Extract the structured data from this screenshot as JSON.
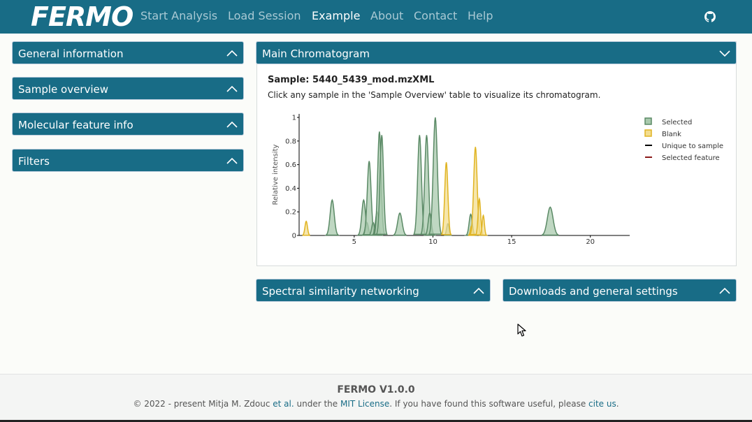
{
  "app": {
    "logo": "FERMO"
  },
  "nav": {
    "items": [
      {
        "label": "Start Analysis",
        "active": false
      },
      {
        "label": "Load Session",
        "active": false
      },
      {
        "label": "Example",
        "active": true
      },
      {
        "label": "About",
        "active": false
      },
      {
        "label": "Contact",
        "active": false
      },
      {
        "label": "Help",
        "active": false
      }
    ],
    "github_icon": "github-icon"
  },
  "sidebar": {
    "panels": [
      {
        "label": "General information"
      },
      {
        "label": "Sample overview"
      },
      {
        "label": "Molecular feature info"
      },
      {
        "label": "Filters"
      }
    ]
  },
  "main": {
    "chromatogram_header": "Main Chromatogram",
    "sample_title": "Sample: 5440_5439_mod.mzXML",
    "hint": "Click any sample in the 'Sample Overview' table to visualize its chromatogram."
  },
  "bottom_panels": {
    "left": "Spectral similarity networking",
    "right": "Downloads and general settings"
  },
  "chart_data": {
    "type": "area",
    "ylabel": "Relative intensity",
    "xlabel": "",
    "xlim": [
      1.5,
      22.5
    ],
    "ylim": [
      0,
      1.03
    ],
    "xticks": [
      5,
      10,
      15,
      20
    ],
    "yticks": [
      0,
      0.2,
      0.4,
      0.6,
      0.8,
      1
    ],
    "ytick_labels": [
      "0",
      "0.2",
      "0.4",
      "0.6",
      "0.8",
      "1"
    ],
    "legend_position": "top-right",
    "legend": [
      {
        "name": "Selected",
        "color": "#5b8a66",
        "fill": "#a9c9ad",
        "kind": "box"
      },
      {
        "name": "Blank",
        "color": "#e0b423",
        "fill": "#f3dd8f",
        "kind": "box"
      },
      {
        "name": "Unique to sample",
        "color": "#000000",
        "kind": "line"
      },
      {
        "name": "Selected feature",
        "color": "#8b1a1a",
        "kind": "line"
      }
    ],
    "series": [
      {
        "name": "Selected",
        "peaks": [
          {
            "x": 3.6,
            "y": 0.3,
            "w": 0.13
          },
          {
            "x": 5.6,
            "y": 0.3,
            "w": 0.12
          },
          {
            "x": 5.8,
            "y": 0.11,
            "w": 0.1
          },
          {
            "x": 5.95,
            "y": 0.63,
            "w": 0.12
          },
          {
            "x": 6.2,
            "y": 0.11,
            "w": 0.09
          },
          {
            "x": 6.45,
            "y": 0.2,
            "w": 0.1
          },
          {
            "x": 6.6,
            "y": 0.88,
            "w": 0.11
          },
          {
            "x": 6.75,
            "y": 0.85,
            "w": 0.11
          },
          {
            "x": 7.9,
            "y": 0.19,
            "w": 0.14
          },
          {
            "x": 9.15,
            "y": 0.85,
            "w": 0.12
          },
          {
            "x": 9.6,
            "y": 0.85,
            "w": 0.12
          },
          {
            "x": 9.8,
            "y": 0.19,
            "w": 0.1
          },
          {
            "x": 10.15,
            "y": 1.0,
            "w": 0.13
          },
          {
            "x": 10.95,
            "y": 0.1,
            "w": 0.08
          },
          {
            "x": 12.4,
            "y": 0.18,
            "w": 0.1
          },
          {
            "x": 17.45,
            "y": 0.24,
            "w": 0.18
          }
        ]
      },
      {
        "name": "Blank",
        "peaks": [
          {
            "x": 1.95,
            "y": 0.12,
            "w": 0.08
          },
          {
            "x": 10.85,
            "y": 0.62,
            "w": 0.1
          },
          {
            "x": 12.45,
            "y": 0.08,
            "w": 0.07
          },
          {
            "x": 12.7,
            "y": 0.75,
            "w": 0.11
          },
          {
            "x": 12.95,
            "y": 0.31,
            "w": 0.08
          },
          {
            "x": 13.2,
            "y": 0.17,
            "w": 0.07
          }
        ]
      }
    ]
  },
  "footer": {
    "title": "FERMO V1.0.0",
    "text_1": "© 2022 - present Mitja M. Zdouc ",
    "link_etal": "et al.",
    "text_2": " under the ",
    "link_license": "MIT License",
    "text_3": ". If you have found this software useful, please ",
    "link_cite": "cite us",
    "text_4": "."
  }
}
